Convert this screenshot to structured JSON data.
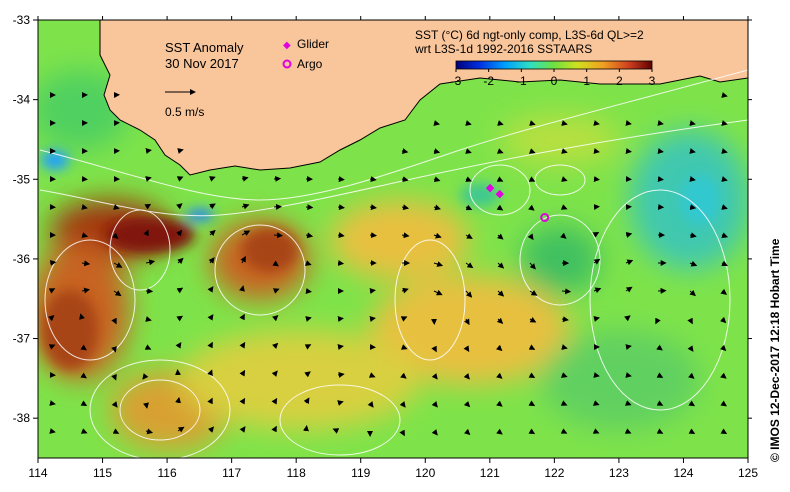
{
  "map": {
    "title": "SST Anomaly",
    "date": "30 Nov 2017",
    "scale_label": "0.5 m/s",
    "legend": {
      "glider_label": "Glider",
      "argo_label": "Argo",
      "glider_color": "#e000e0",
      "argo_color": "#e000e0"
    },
    "colorbar": {
      "line1": "SST (°C) 6d ngt-only comp, L3S-6d QL>=2",
      "line2": "wrt L3S-1d 1992-2016 SSTAARS",
      "ticks": [
        "-3",
        "-2",
        "-1",
        "0",
        "1",
        "2",
        "3"
      ]
    },
    "axes": {
      "x_ticks": [
        "114",
        "115",
        "116",
        "117",
        "118",
        "119",
        "120",
        "121",
        "122",
        "123",
        "124",
        "125"
      ],
      "y_ticks": [
        "-33",
        "-34",
        "-35",
        "-36",
        "-37",
        "-38"
      ]
    },
    "credit": "© IMOS 12-Dec-2017 12:18 Hobart Time",
    "colors": {
      "land": "#f9c59a",
      "ocean_base": "#7ee34a",
      "contour": "#ffffff",
      "arrow": "#000000"
    },
    "gliders": [
      {
        "lon": 121.0,
        "lat": -35.1
      },
      {
        "lon": 121.15,
        "lat": -35.17
      }
    ],
    "argo": [
      {
        "lon": 121.85,
        "lat": -35.48
      }
    ]
  }
}
